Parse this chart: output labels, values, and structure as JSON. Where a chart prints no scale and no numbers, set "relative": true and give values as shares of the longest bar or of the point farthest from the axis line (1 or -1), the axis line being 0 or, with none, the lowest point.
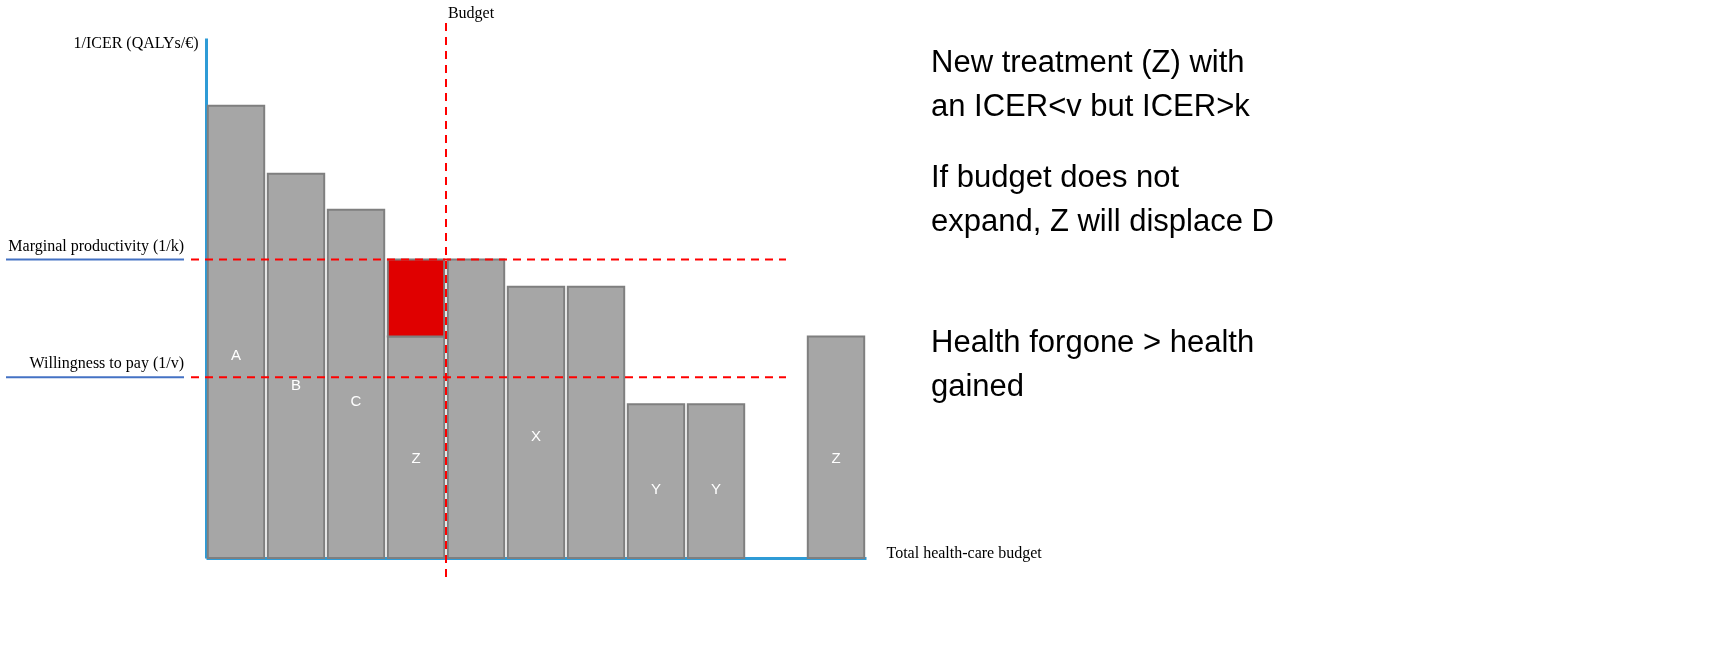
{
  "chart_data": {
    "type": "bar",
    "relative": true,
    "stacked": true,
    "ylabel": "1/ICER (QALYs/€)",
    "xlabel": "Total health-care budget",
    "grid": false,
    "legend": false,
    "categories": [
      "A",
      "B",
      "C",
      "Z",
      null,
      "X",
      null,
      "Y",
      "Y",
      null,
      "Z"
    ],
    "series": [
      {
        "color": "#a6a6a6",
        "values": [
          1,
          0.85,
          0.77,
          0.49,
          0.66,
          0.6,
          0.6,
          0.34,
          0.34,
          null,
          0.49
        ]
      },
      {
        "color": "#e00000",
        "values": [
          null,
          null,
          null,
          0.17,
          null,
          null,
          null,
          null,
          null,
          null,
          null
        ]
      }
    ],
    "ref_lines": [
      {
        "axis": "y",
        "value": 0.66,
        "label": "Marginal productivity (1/k)",
        "color": "#ff0000",
        "line_style": "dashed"
      },
      {
        "axis": "y",
        "value": 0.4,
        "label": "Willingness to pay (1/v)",
        "color": "#ff0000",
        "line_style": "dashed"
      },
      {
        "axis": "x",
        "value": "Z",
        "label": "Budget",
        "color": "#ff0000",
        "line_style": "dashed"
      }
    ],
    "annotations": [
      "New treatment (Z) with\nan ICER<v but ICER>k",
      "If budget does not\nexpand, Z will displace D",
      "Health forgone > health\ngained"
    ]
  }
}
